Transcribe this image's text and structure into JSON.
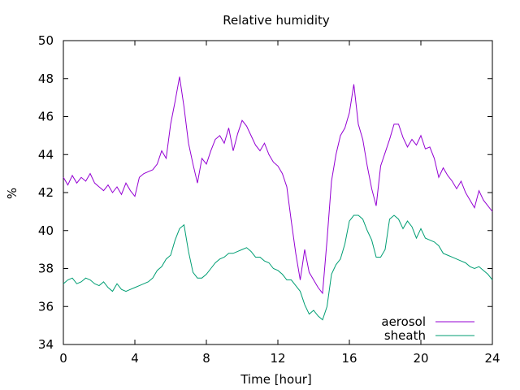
{
  "chart_data": {
    "type": "line",
    "title": "Relative humidity",
    "xlabel": "Time [hour]",
    "ylabel": "%",
    "xlim": [
      0,
      24
    ],
    "ylim": [
      34,
      50
    ],
    "xticks": [
      0,
      4,
      8,
      12,
      16,
      20,
      24
    ],
    "yticks": [
      34,
      36,
      38,
      40,
      42,
      44,
      46,
      48,
      50
    ],
    "grid": false,
    "legend_position": "bottom-right",
    "x": [
      0,
      0.25,
      0.5,
      0.75,
      1,
      1.25,
      1.5,
      1.75,
      2,
      2.25,
      2.5,
      2.75,
      3,
      3.25,
      3.5,
      3.75,
      4,
      4.25,
      4.5,
      4.75,
      5,
      5.25,
      5.5,
      5.75,
      6,
      6.25,
      6.5,
      6.75,
      7,
      7.25,
      7.5,
      7.75,
      8,
      8.25,
      8.5,
      8.75,
      9,
      9.25,
      9.5,
      9.75,
      10,
      10.25,
      10.5,
      10.75,
      11,
      11.25,
      11.5,
      11.75,
      12,
      12.25,
      12.5,
      12.75,
      13,
      13.25,
      13.5,
      13.75,
      14,
      14.25,
      14.5,
      14.75,
      15,
      15.25,
      15.5,
      15.75,
      16,
      16.25,
      16.5,
      16.75,
      17,
      17.25,
      17.5,
      17.75,
      18,
      18.25,
      18.5,
      18.75,
      19,
      19.25,
      19.5,
      19.75,
      20,
      20.25,
      20.5,
      20.75,
      21,
      21.25,
      21.5,
      21.75,
      22,
      22.25,
      22.5,
      22.75,
      23,
      23.25,
      23.5,
      23.75,
      24
    ],
    "series": [
      {
        "name": "aerosol",
        "color": "#9400d3",
        "values": [
          42.8,
          42.4,
          42.9,
          42.5,
          42.8,
          42.6,
          43.0,
          42.5,
          42.3,
          42.1,
          42.4,
          42.0,
          42.3,
          41.9,
          42.5,
          42.1,
          41.8,
          42.8,
          43.0,
          43.1,
          43.2,
          43.5,
          44.2,
          43.8,
          45.6,
          46.8,
          48.1,
          46.5,
          44.6,
          43.5,
          42.5,
          43.8,
          43.5,
          44.2,
          44.8,
          45.0,
          44.6,
          45.4,
          44.2,
          45.1,
          45.8,
          45.5,
          45.0,
          44.5,
          44.2,
          44.6,
          44.0,
          43.6,
          43.4,
          43.0,
          42.3,
          40.5,
          38.8,
          37.4,
          39.0,
          37.8,
          37.4,
          37.0,
          36.7,
          39.5,
          42.6,
          44.0,
          45.0,
          45.4,
          46.2,
          47.7,
          45.6,
          44.8,
          43.4,
          42.2,
          41.3,
          43.4,
          44.1,
          44.8,
          45.6,
          45.6,
          44.9,
          44.4,
          44.8,
          44.5,
          45.0,
          44.3,
          44.4,
          43.8,
          42.8,
          43.3,
          42.9,
          42.6,
          42.2,
          42.6,
          42.0,
          41.6,
          41.2,
          42.1,
          41.6,
          41.3,
          41.0
        ]
      },
      {
        "name": "sheath",
        "color": "#009e73",
        "values": [
          37.2,
          37.4,
          37.5,
          37.2,
          37.3,
          37.5,
          37.4,
          37.2,
          37.1,
          37.3,
          37.0,
          36.8,
          37.2,
          36.9,
          36.8,
          36.9,
          37.0,
          37.1,
          37.2,
          37.3,
          37.5,
          37.9,
          38.1,
          38.5,
          38.7,
          39.5,
          40.1,
          40.3,
          38.9,
          37.8,
          37.5,
          37.5,
          37.7,
          38.0,
          38.3,
          38.5,
          38.6,
          38.8,
          38.8,
          38.9,
          39.0,
          39.1,
          38.9,
          38.6,
          38.6,
          38.4,
          38.3,
          38.0,
          37.9,
          37.7,
          37.4,
          37.4,
          37.1,
          36.8,
          36.1,
          35.6,
          35.8,
          35.5,
          35.3,
          36.0,
          37.7,
          38.2,
          38.5,
          39.3,
          40.5,
          40.8,
          40.8,
          40.6,
          40.0,
          39.5,
          38.6,
          38.6,
          39.0,
          40.6,
          40.8,
          40.6,
          40.1,
          40.5,
          40.2,
          39.6,
          40.1,
          39.6,
          39.5,
          39.4,
          39.2,
          38.8,
          38.7,
          38.6,
          38.5,
          38.4,
          38.3,
          38.1,
          38.0,
          38.1,
          37.9,
          37.7,
          37.4
        ]
      }
    ]
  }
}
